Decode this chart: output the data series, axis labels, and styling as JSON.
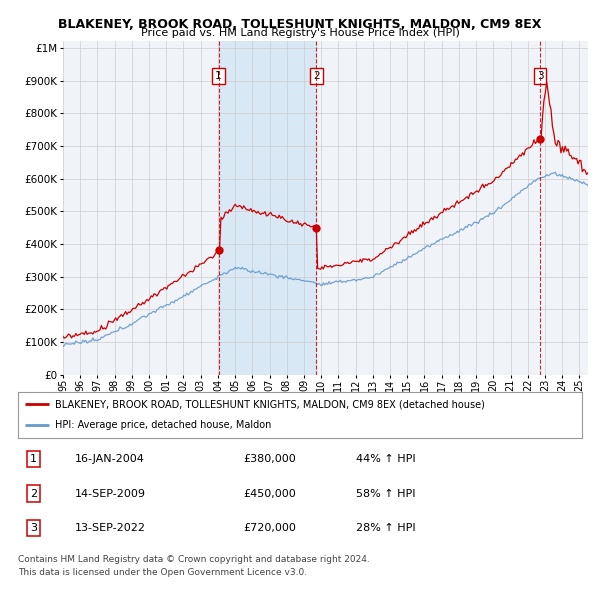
{
  "title": "BLAKENEY, BROOK ROAD, TOLLESHUNT KNIGHTS, MALDON, CM9 8EX",
  "subtitle": "Price paid vs. HM Land Registry's House Price Index (HPI)",
  "ytick_values": [
    0,
    100000,
    200000,
    300000,
    400000,
    500000,
    600000,
    700000,
    800000,
    900000,
    1000000
  ],
  "ylim": [
    0,
    1020000
  ],
  "xlim_start": 1995.0,
  "xlim_end": 2025.5,
  "sale_dates": [
    2004.04,
    2009.71,
    2022.71
  ],
  "sale_prices": [
    380000,
    450000,
    720000
  ],
  "sale_labels": [
    "1",
    "2",
    "3"
  ],
  "legend_line1": "BLAKENEY, BROOK ROAD, TOLLESHUNT KNIGHTS, MALDON, CM9 8EX (detached house)",
  "legend_line2": "HPI: Average price, detached house, Maldon",
  "table_data": [
    [
      "1",
      "16-JAN-2004",
      "£380,000",
      "44% ↑ HPI"
    ],
    [
      "2",
      "14-SEP-2009",
      "£450,000",
      "58% ↑ HPI"
    ],
    [
      "3",
      "13-SEP-2022",
      "£720,000",
      "28% ↑ HPI"
    ]
  ],
  "footnote1": "Contains HM Land Registry data © Crown copyright and database right 2024.",
  "footnote2": "This data is licensed under the Open Government Licence v3.0.",
  "hpi_color": "#6699cc",
  "price_color": "#cc0000",
  "sale_marker_color": "#cc0000",
  "grid_color": "#cccccc",
  "bg_color": "#ffffff",
  "plot_bg_color": "#f0f4f8",
  "shade_color": "#d8e8f5"
}
